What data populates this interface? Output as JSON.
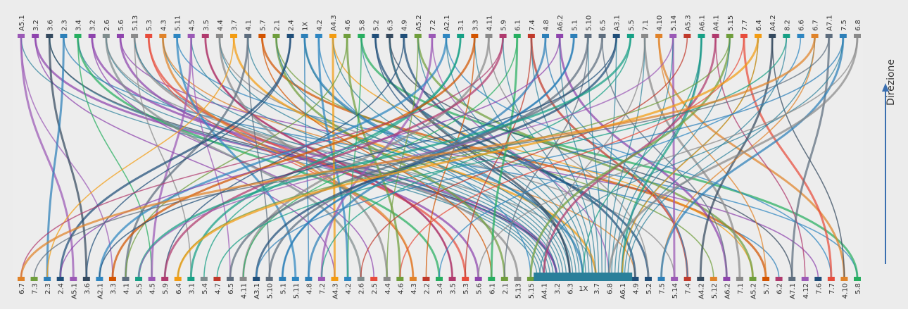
{
  "direction_label": "Direzione",
  "top_labels": [
    "A5.1",
    "3.2",
    "3.6",
    "2.3",
    "3.4",
    "3.2",
    "2.6",
    "5.6",
    "5.13",
    "5.3",
    "4.3",
    "5.11",
    "4.5",
    "3.5",
    "4.4",
    "3.7",
    "4.1",
    "5.7",
    "2.1",
    "2.4",
    "1X",
    "4.2",
    "A4.3",
    "4.6",
    "5.8",
    "5.2",
    "6.3",
    "4.9",
    "A5.2",
    "7.2",
    "A2.1",
    "3.1",
    "3.3",
    "4.11",
    "5.9",
    "6.1",
    "7.4",
    "4.8",
    "A6.2",
    "5.1",
    "5.10",
    "6.5",
    "A3.1",
    "5.5",
    "7.1",
    "4.10",
    "5.14",
    "A5.3",
    "A6.1",
    "A4.1",
    "5.15",
    "7.7",
    "6.4",
    "A4.2",
    "8.2",
    "6.6",
    "6.7",
    "A7.1",
    "7.5",
    "6.8"
  ],
  "bottom_labels": [
    "6.7",
    "7.3",
    "2.3",
    "2.4",
    "A5.1",
    "3.6",
    "A2.1",
    "3.3",
    "4.1",
    "5.5",
    "4.5",
    "5.9",
    "6.4",
    "3.1",
    "5.4",
    "4.7",
    "6.5",
    "4.11",
    "A3.1",
    "5.10",
    "5.1",
    "5.11",
    "4.8",
    "7.2",
    "A4.3",
    "4.2",
    "2.6",
    "2.5",
    "4.4",
    "4.6",
    "4.3",
    "2.2",
    "3.4",
    "3.5",
    "5.3",
    "5.6",
    "6.1",
    "2.1",
    "5.13",
    "5.15",
    "A4.1",
    "3.2",
    "6.3",
    "1X",
    "3.7",
    "6.8",
    "A6.1",
    "4.9",
    "5.2",
    "7.5",
    "5.14",
    "7.4",
    "A4.2",
    "5.12",
    "A6.2",
    "7.1",
    "A5.2",
    "5.7",
    "6.2",
    "A7.1",
    "4.12",
    "7.6",
    "7.7",
    "4.10",
    "5.8"
  ]
}
